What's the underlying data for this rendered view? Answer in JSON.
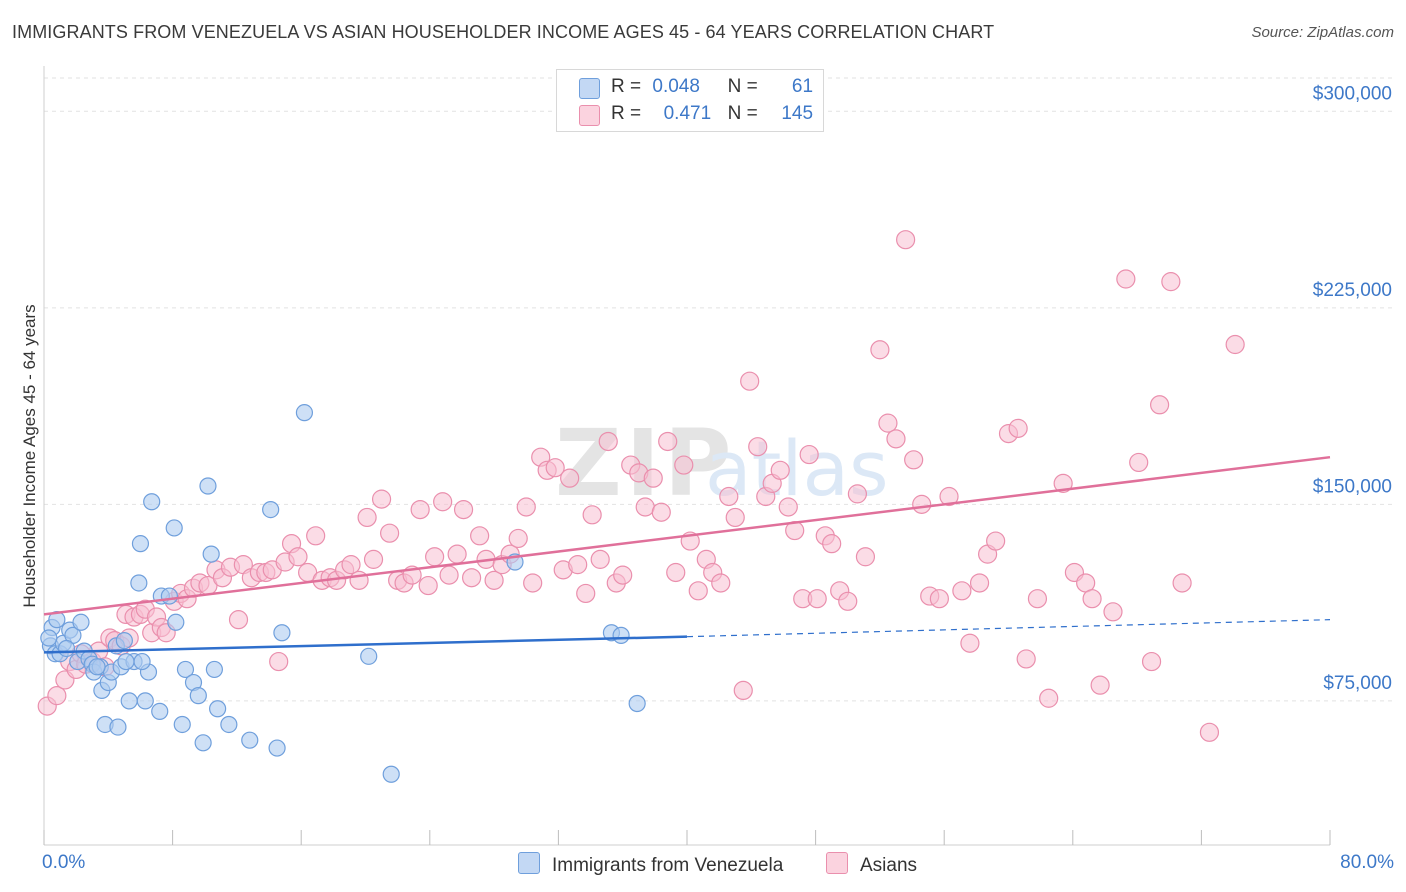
{
  "header": {
    "title": "IMMIGRANTS FROM VENEZUELA VS ASIAN HOUSEHOLDER INCOME AGES 45 - 64 YEARS CORRELATION CHART",
    "source": "Source: ZipAtlas.com"
  },
  "legend": {
    "r_label": "R =",
    "n_label": "N =",
    "rows": [
      {
        "r": "0.048",
        "n": "61"
      },
      {
        "r": "0.471",
        "n": "145"
      }
    ]
  },
  "colors": {
    "blue_fill": "#aecbf0",
    "blue_stroke": "#6f9fdc",
    "blue_line": "#2f6fcc",
    "pink_fill": "#f7c0d1",
    "pink_stroke": "#ea8fad",
    "pink_line": "#e0709a",
    "axis_text": "#3d78c8",
    "grid": "#e2e2e2"
  },
  "chart_data": {
    "type": "scatter",
    "title": "IMMIGRANTS FROM VENEZUELA VS ASIAN HOUSEHOLDER INCOME AGES 45 - 64 YEARS CORRELATION CHART",
    "xlabel": "",
    "ylabel": "Householder Income Ages 45 - 64 years",
    "x_unit": "%",
    "xlim": [
      0,
      80
    ],
    "ylim": [
      20000,
      315000
    ],
    "x_tick_labels": [
      "0.0%",
      "80.0%"
    ],
    "y_ticks": [
      75000,
      150000,
      225000,
      300000
    ],
    "y_tick_labels": [
      "$75,000",
      "$150,000",
      "$225,000",
      "$300,000"
    ],
    "grid": true,
    "legend_position": "top-center",
    "watermark": "ZIPatlas",
    "series": [
      {
        "name": "Immigrants from Venezuela",
        "color": "#6f9fdc",
        "r": 0.048,
        "n": 61,
        "trend": {
          "x": [
            0,
            40
          ],
          "y": [
            93500,
            99500
          ],
          "dashed_to_x": 80,
          "dashed_to_y": 106000
        },
        "points": [
          [
            0.5,
            103000
          ],
          [
            0.4,
            96000
          ],
          [
            0.7,
            93000
          ],
          [
            0.8,
            106000
          ],
          [
            1.0,
            93000
          ],
          [
            1.2,
            97000
          ],
          [
            1.6,
            102000
          ],
          [
            1.8,
            100000
          ],
          [
            2.1,
            90000
          ],
          [
            2.3,
            105000
          ],
          [
            2.5,
            94000
          ],
          [
            2.8,
            91000
          ],
          [
            3.0,
            89000
          ],
          [
            3.1,
            86000
          ],
          [
            3.5,
            88000
          ],
          [
            3.6,
            79000
          ],
          [
            3.8,
            66000
          ],
          [
            4.0,
            82000
          ],
          [
            4.2,
            86000
          ],
          [
            4.5,
            96000
          ],
          [
            4.6,
            65000
          ],
          [
            4.8,
            88000
          ],
          [
            5.0,
            98000
          ],
          [
            5.3,
            75000
          ],
          [
            5.6,
            90000
          ],
          [
            5.9,
            120000
          ],
          [
            6.0,
            135000
          ],
          [
            6.3,
            75000
          ],
          [
            6.5,
            86000
          ],
          [
            6.7,
            151000
          ],
          [
            7.2,
            71000
          ],
          [
            7.3,
            115000
          ],
          [
            7.8,
            115000
          ],
          [
            8.1,
            141000
          ],
          [
            8.2,
            105000
          ],
          [
            8.6,
            66000
          ],
          [
            8.8,
            87000
          ],
          [
            9.3,
            82000
          ],
          [
            9.6,
            77000
          ],
          [
            9.9,
            59000
          ],
          [
            10.2,
            157000
          ],
          [
            10.4,
            131000
          ],
          [
            10.6,
            87000
          ],
          [
            10.8,
            72000
          ],
          [
            11.5,
            66000
          ],
          [
            12.8,
            60000
          ],
          [
            14.1,
            148000
          ],
          [
            14.5,
            57000
          ],
          [
            14.8,
            101000
          ],
          [
            16.2,
            185000
          ],
          [
            20.2,
            92000
          ],
          [
            21.6,
            47000
          ],
          [
            29.3,
            128000
          ],
          [
            35.3,
            101000
          ],
          [
            35.9,
            100000
          ],
          [
            36.9,
            74000
          ],
          [
            0.3,
            99000
          ],
          [
            1.4,
            95000
          ],
          [
            5.1,
            90000
          ],
          [
            3.3,
            88000
          ],
          [
            6.1,
            90000
          ]
        ]
      },
      {
        "name": "Asians",
        "color": "#ea8fad",
        "r": 0.471,
        "n": 145,
        "trend": {
          "x": [
            0,
            80
          ],
          "y": [
            108000,
            168000
          ]
        },
        "points": [
          [
            0.2,
            73000
          ],
          [
            0.8,
            77000
          ],
          [
            1.3,
            83000
          ],
          [
            1.6,
            90000
          ],
          [
            2.0,
            87000
          ],
          [
            2.3,
            93000
          ],
          [
            2.6,
            89000
          ],
          [
            3.0,
            90000
          ],
          [
            3.4,
            94000
          ],
          [
            3.8,
            88000
          ],
          [
            4.1,
            99000
          ],
          [
            4.4,
            98000
          ],
          [
            4.8,
            96000
          ],
          [
            5.1,
            108000
          ],
          [
            5.3,
            99000
          ],
          [
            5.6,
            107000
          ],
          [
            6.0,
            108000
          ],
          [
            6.3,
            110000
          ],
          [
            6.7,
            101000
          ],
          [
            7.0,
            107000
          ],
          [
            7.3,
            103000
          ],
          [
            7.6,
            101000
          ],
          [
            8.1,
            113000
          ],
          [
            8.5,
            116000
          ],
          [
            8.9,
            114000
          ],
          [
            9.3,
            118000
          ],
          [
            9.7,
            120000
          ],
          [
            10.2,
            119000
          ],
          [
            10.7,
            125000
          ],
          [
            11.1,
            122000
          ],
          [
            11.6,
            126000
          ],
          [
            12.1,
            106000
          ],
          [
            12.4,
            127000
          ],
          [
            12.9,
            122000
          ],
          [
            13.4,
            124000
          ],
          [
            13.8,
            124000
          ],
          [
            14.2,
            125000
          ],
          [
            14.6,
            90000
          ],
          [
            15.0,
            128000
          ],
          [
            15.4,
            135000
          ],
          [
            15.8,
            130000
          ],
          [
            16.4,
            124000
          ],
          [
            16.9,
            138000
          ],
          [
            17.3,
            121000
          ],
          [
            17.8,
            122000
          ],
          [
            18.2,
            121000
          ],
          [
            18.7,
            125000
          ],
          [
            19.1,
            127000
          ],
          [
            19.6,
            121000
          ],
          [
            20.1,
            145000
          ],
          [
            20.5,
            129000
          ],
          [
            21.0,
            152000
          ],
          [
            21.5,
            139000
          ],
          [
            22.0,
            121000
          ],
          [
            22.4,
            120000
          ],
          [
            22.9,
            123000
          ],
          [
            23.4,
            148000
          ],
          [
            23.9,
            119000
          ],
          [
            24.3,
            130000
          ],
          [
            24.8,
            151000
          ],
          [
            25.2,
            123000
          ],
          [
            25.7,
            131000
          ],
          [
            26.1,
            148000
          ],
          [
            26.6,
            122000
          ],
          [
            27.1,
            138000
          ],
          [
            27.5,
            129000
          ],
          [
            28.0,
            121000
          ],
          [
            28.5,
            127000
          ],
          [
            29.0,
            131000
          ],
          [
            29.5,
            137000
          ],
          [
            30.0,
            149000
          ],
          [
            30.4,
            120000
          ],
          [
            30.9,
            168000
          ],
          [
            31.3,
            163000
          ],
          [
            31.8,
            164000
          ],
          [
            32.3,
            125000
          ],
          [
            32.7,
            160000
          ],
          [
            33.2,
            127000
          ],
          [
            33.7,
            116000
          ],
          [
            34.1,
            146000
          ],
          [
            34.6,
            129000
          ],
          [
            35.1,
            174000
          ],
          [
            35.6,
            120000
          ],
          [
            36.0,
            123000
          ],
          [
            36.5,
            165000
          ],
          [
            37.0,
            162000
          ],
          [
            37.4,
            149000
          ],
          [
            37.9,
            160000
          ],
          [
            38.4,
            147000
          ],
          [
            38.8,
            174000
          ],
          [
            39.3,
            124000
          ],
          [
            39.8,
            165000
          ],
          [
            40.2,
            136000
          ],
          [
            40.7,
            117000
          ],
          [
            41.2,
            129000
          ],
          [
            41.6,
            124000
          ],
          [
            42.1,
            120000
          ],
          [
            42.6,
            153000
          ],
          [
            43.0,
            145000
          ],
          [
            43.5,
            79000
          ],
          [
            43.9,
            197000
          ],
          [
            44.4,
            172000
          ],
          [
            44.9,
            153000
          ],
          [
            45.3,
            158000
          ],
          [
            45.8,
            163000
          ],
          [
            46.3,
            149000
          ],
          [
            46.7,
            140000
          ],
          [
            47.2,
            114000
          ],
          [
            47.6,
            169000
          ],
          [
            48.1,
            114000
          ],
          [
            48.6,
            138000
          ],
          [
            49.0,
            135000
          ],
          [
            49.5,
            117000
          ],
          [
            50.0,
            113000
          ],
          [
            50.6,
            154000
          ],
          [
            51.1,
            130000
          ],
          [
            52.0,
            209000
          ],
          [
            52.5,
            181000
          ],
          [
            53.0,
            175000
          ],
          [
            53.6,
            251000
          ],
          [
            54.1,
            167000
          ],
          [
            54.6,
            150000
          ],
          [
            55.1,
            115000
          ],
          [
            55.7,
            114000
          ],
          [
            56.3,
            153000
          ],
          [
            57.1,
            117000
          ],
          [
            57.6,
            97000
          ],
          [
            58.2,
            120000
          ],
          [
            58.7,
            131000
          ],
          [
            59.2,
            136000
          ],
          [
            60.0,
            177000
          ],
          [
            60.6,
            179000
          ],
          [
            61.1,
            91000
          ],
          [
            61.8,
            114000
          ],
          [
            62.5,
            76000
          ],
          [
            63.4,
            158000
          ],
          [
            64.1,
            124000
          ],
          [
            64.8,
            120000
          ],
          [
            65.2,
            114000
          ],
          [
            65.7,
            81000
          ],
          [
            66.5,
            109000
          ],
          [
            67.3,
            236000
          ],
          [
            68.1,
            166000
          ],
          [
            68.9,
            90000
          ],
          [
            69.4,
            188000
          ],
          [
            70.1,
            235000
          ],
          [
            70.8,
            120000
          ],
          [
            72.5,
            63000
          ],
          [
            74.1,
            211000
          ]
        ]
      }
    ]
  },
  "bottom_legend": [
    {
      "label": "Immigrants from Venezuela"
    },
    {
      "label": "Asians"
    }
  ]
}
